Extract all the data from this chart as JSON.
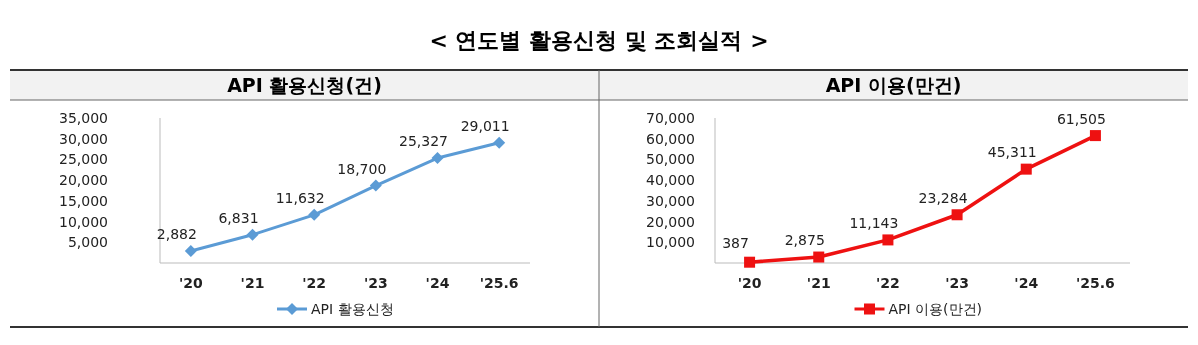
{
  "chart_data": [
    {
      "type": "line",
      "title": "< 연도별 활용신청 및 조회실적 >",
      "subtitle": "API 활용신청(건)",
      "categories": [
        "'20",
        "'21",
        "'22",
        "'23",
        "'24",
        "'25.6"
      ],
      "series": [
        {
          "name": "API 활용신청",
          "color": "#5b9bd5",
          "values": [
            2882,
            6831,
            11632,
            18700,
            25327,
            29011
          ],
          "value_labels": [
            "2,882",
            "6,831",
            "11,632",
            "18,700",
            "25,327",
            "29,011"
          ]
        }
      ],
      "ylim": [
        0,
        35000
      ],
      "yticks": [
        {
          "value": 5000,
          "label": "5,000"
        },
        {
          "value": 10000,
          "label": "10,000"
        },
        {
          "value": 15000,
          "label": "15,000"
        },
        {
          "value": 20000,
          "label": "20,000"
        },
        {
          "value": 25000,
          "label": "25,000"
        },
        {
          "value": 30000,
          "label": "30,000"
        },
        {
          "value": 35000,
          "label": "35,000"
        }
      ],
      "marker": "diamond",
      "legend": "bottom",
      "grid": false
    },
    {
      "type": "line",
      "subtitle": "API 이용(만건)",
      "categories": [
        "'20",
        "'21",
        "'22",
        "'23",
        "'24",
        "'25.6"
      ],
      "series": [
        {
          "name": "API 이용(만건)",
          "color": "#ee1111",
          "values": [
            387,
            2875,
            11143,
            23284,
            45311,
            61505
          ],
          "value_labels": [
            "387",
            "2,875",
            "11,143",
            "23,284",
            "45,311",
            "61,505"
          ]
        }
      ],
      "ylim": [
        0,
        70000
      ],
      "yticks": [
        {
          "value": 10000,
          "label": "10,000"
        },
        {
          "value": 20000,
          "label": "20,000"
        },
        {
          "value": 30000,
          "label": "30,000"
        },
        {
          "value": 40000,
          "label": "40,000"
        },
        {
          "value": 50000,
          "label": "50,000"
        },
        {
          "value": 60000,
          "label": "60,000"
        },
        {
          "value": 70000,
          "label": "70,000"
        }
      ],
      "marker": "square",
      "legend": "bottom",
      "grid": false
    }
  ]
}
